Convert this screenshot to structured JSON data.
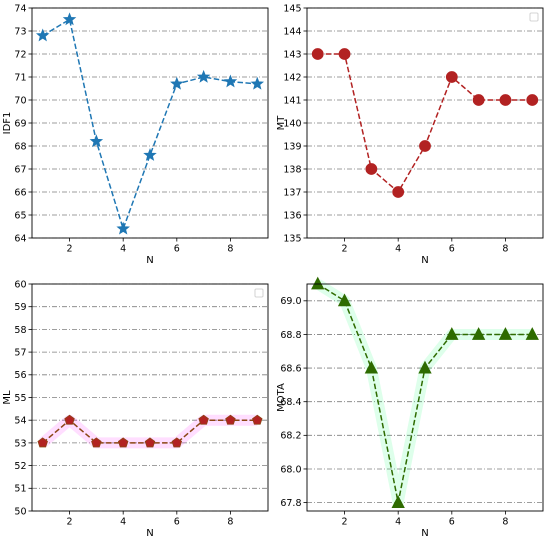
{
  "chart_data": [
    {
      "id": "idf1",
      "type": "line",
      "xlabel": "N",
      "ylabel": "IDF1",
      "x": [
        1,
        2,
        3,
        4,
        5,
        6,
        7,
        8,
        9
      ],
      "xticks": [
        2,
        4,
        6,
        8
      ],
      "xlim": [
        0.6,
        9.4
      ],
      "ylim": [
        64,
        74
      ],
      "yticks": [
        64,
        65,
        66,
        67,
        68,
        69,
        70,
        71,
        72,
        73,
        74
      ],
      "ytick_labels": [
        "64",
        "65",
        "66",
        "67",
        "68",
        "69",
        "70",
        "71",
        "72",
        "73",
        "74"
      ],
      "grid": "horizontal dash-dot",
      "legend": false,
      "series": [
        {
          "values": [
            72.8,
            73.5,
            68.2,
            64.4,
            67.6,
            70.7,
            71.0,
            70.8,
            70.7
          ],
          "color": "#1f77b4",
          "marker": "star",
          "linestyle": "dashed"
        }
      ]
    },
    {
      "id": "mt",
      "type": "line",
      "xlabel": "N",
      "ylabel": "MT",
      "x": [
        1,
        2,
        3,
        4,
        5,
        6,
        7,
        8,
        9
      ],
      "xticks": [
        2,
        4,
        6,
        8
      ],
      "xlim": [
        0.6,
        9.4
      ],
      "ylim": [
        135,
        145
      ],
      "yticks": [
        135,
        136,
        137,
        138,
        139,
        140,
        141,
        142,
        143,
        144,
        145
      ],
      "ytick_labels": [
        "135",
        "136",
        "137",
        "138",
        "139",
        "140",
        "141",
        "142",
        "143",
        "144",
        "145"
      ],
      "grid": "horizontal dash-dot",
      "legend": "empty box, top-right",
      "series": [
        {
          "values": [
            143,
            143,
            138,
            137,
            139,
            142,
            141,
            141,
            141
          ],
          "color": "#b22222",
          "marker": "circle",
          "linestyle": "dashed"
        }
      ]
    },
    {
      "id": "ml",
      "type": "line",
      "xlabel": "N",
      "ylabel": "ML",
      "x": [
        1,
        2,
        3,
        4,
        5,
        6,
        7,
        8,
        9
      ],
      "xticks": [
        2,
        4,
        6,
        8
      ],
      "xlim": [
        0.6,
        9.4
      ],
      "ylim": [
        50,
        60
      ],
      "yticks": [
        50,
        51,
        52,
        53,
        54,
        55,
        56,
        57,
        58,
        59,
        60
      ],
      "ytick_labels": [
        "50",
        "51",
        "52",
        "53",
        "54",
        "55",
        "56",
        "57",
        "58",
        "59",
        "60"
      ],
      "grid": "horizontal dash-dot",
      "legend": "empty box, top-right",
      "series": [
        {
          "values": [
            53,
            54,
            53,
            53,
            53,
            53,
            54,
            54,
            54
          ],
          "color": "#8b4513",
          "marker": "pentagon",
          "marker_color": "#b22222",
          "linestyle": "dashed",
          "shadow": "#ff00ff"
        }
      ]
    },
    {
      "id": "mota",
      "type": "line",
      "xlabel": "N",
      "ylabel": "MOTA",
      "x": [
        1,
        2,
        3,
        4,
        5,
        6,
        7,
        8,
        9
      ],
      "xticks": [
        2,
        4,
        6,
        8
      ],
      "xlim": [
        0.6,
        9.4
      ],
      "ylim": [
        67.75,
        69.1
      ],
      "yticks": [
        67.8,
        68.0,
        68.2,
        68.4,
        68.6,
        68.8,
        69.0
      ],
      "ytick_labels": [
        "67.8",
        "68.0",
        "68.2",
        "68.4",
        "68.6",
        "68.8",
        "69.0"
      ],
      "grid": "horizontal dash-dot",
      "legend": false,
      "series": [
        {
          "values": [
            69.1,
            69.0,
            68.6,
            67.8,
            68.6,
            68.8,
            68.8,
            68.8,
            68.8
          ],
          "color": "#2e6b00",
          "marker": "triangle",
          "linestyle": "dashed",
          "shadow": "#00ff66"
        }
      ]
    }
  ]
}
